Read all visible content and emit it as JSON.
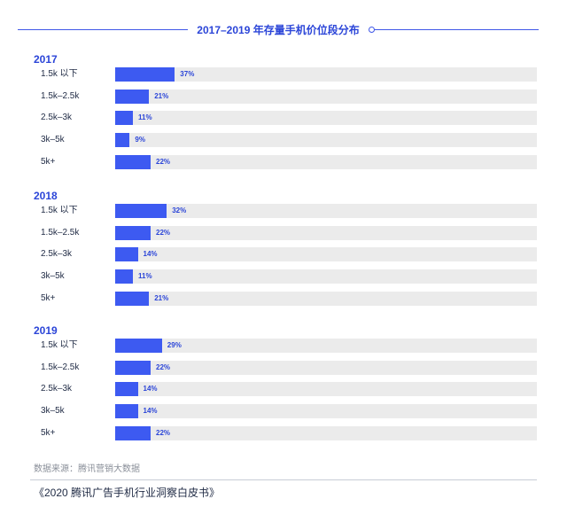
{
  "chart_data": {
    "type": "bar",
    "orientation": "horizontal",
    "title": "2017–2019 年存量手机价位段分布",
    "xlim": [
      0,
      100
    ],
    "value_suffix": "%",
    "grid": false,
    "legend": "none",
    "groups": [
      {
        "name": "2017",
        "categories": [
          "1.5k 以下",
          "1.5k–2.5k",
          "2.5k–3k",
          "3k–5k",
          "5k+"
        ],
        "values": [
          37,
          21,
          11,
          9,
          22
        ]
      },
      {
        "name": "2018",
        "categories": [
          "1.5k 以下",
          "1.5k–2.5k",
          "2.5k–3k",
          "3k–5k",
          "5k+"
        ],
        "values": [
          32,
          22,
          14,
          11,
          21
        ]
      },
      {
        "name": "2019",
        "categories": [
          "1.5k 以下",
          "1.5k–2.5k",
          "2.5k–3k",
          "3k–5k",
          "5k+"
        ],
        "values": [
          29,
          22,
          14,
          14,
          22
        ]
      }
    ]
  },
  "source": "数据来源：腾讯营销大数据",
  "footer": "《2020 腾讯广告手机行业洞察白皮书》",
  "colors": {
    "bar": "#3d5af1",
    "track": "#ebebeb",
    "accent": "#2b45d8"
  }
}
